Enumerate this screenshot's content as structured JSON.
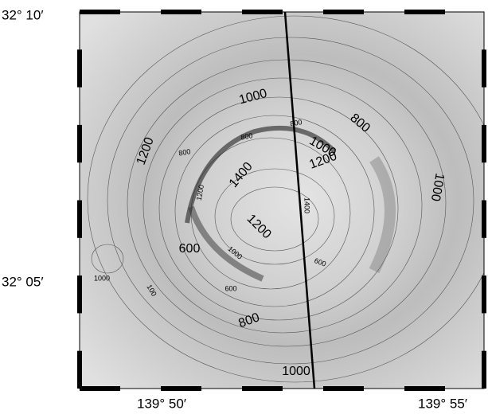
{
  "map": {
    "lat_labels": [
      "32° 10′",
      "32° 05′"
    ],
    "lon_labels": [
      "139° 50′",
      "139° 55′"
    ],
    "contour_labels": [
      "1000",
      "800",
      "1200",
      "800",
      "800",
      "800",
      "1000",
      "1200",
      "1400",
      "1000",
      "1200",
      "1400",
      "1200",
      "600",
      "1000",
      "600",
      "1000",
      "100",
      "600",
      "800",
      "1000"
    ]
  }
}
